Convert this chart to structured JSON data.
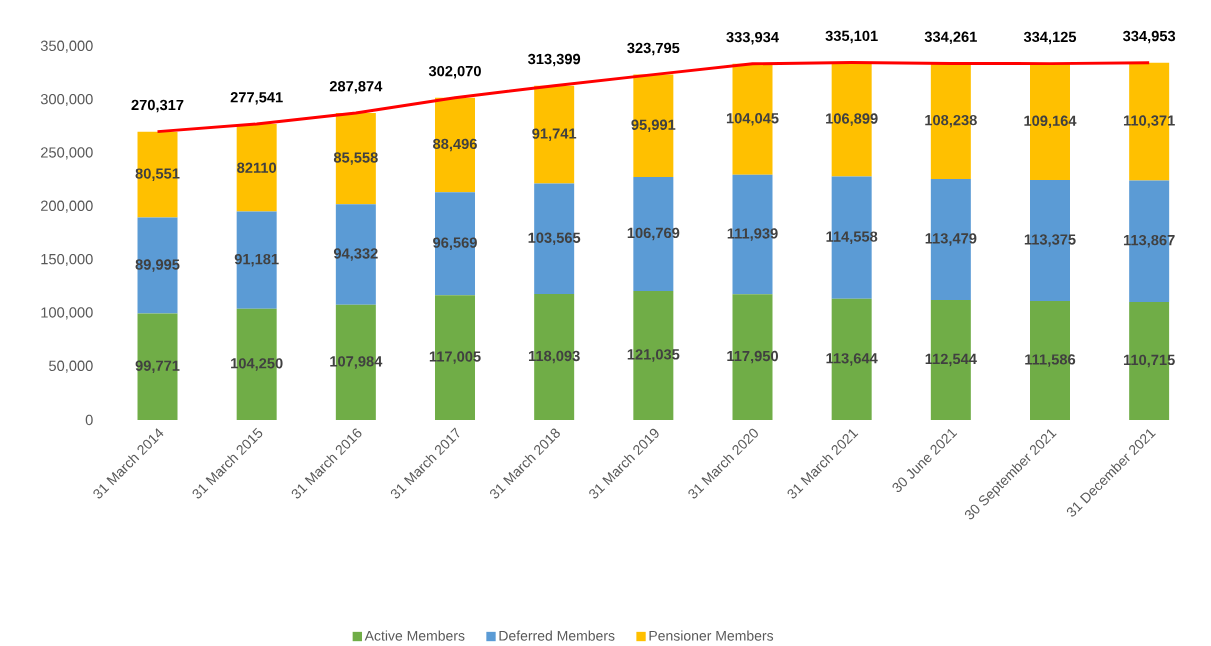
{
  "chart_data": {
    "type": "bar",
    "stacked": true,
    "categories": [
      "31 March 2014",
      "31 March 2015",
      "31 March 2016",
      "31 March 2017",
      "31 March 2018",
      "31 March 2019",
      "31 March 2020",
      "31 March 2021",
      "30 June 2021",
      "30 September 2021",
      "31 December 2021"
    ],
    "series": [
      {
        "name": "Active Members",
        "color": "#70ad47",
        "values": [
          99771,
          104250,
          107984,
          117005,
          118093,
          121035,
          117950,
          113644,
          112544,
          111586,
          110715
        ],
        "value_labels": [
          "99,771",
          "104,250",
          "107,984",
          "117,005",
          "118,093",
          "121,035",
          "117,950",
          "113,644",
          "112,544",
          "111,586",
          "110,715"
        ]
      },
      {
        "name": "Deferred Members",
        "color": "#5b9bd5",
        "values": [
          89995,
          91181,
          94332,
          96569,
          103565,
          106769,
          111939,
          114558,
          113479,
          113375,
          113867
        ],
        "value_labels": [
          "89,995",
          "91,181",
          "94,332",
          "96,569",
          "103,565",
          "106,769",
          "111,939",
          "114,558",
          "113,479",
          "113,375",
          "113,867"
        ]
      },
      {
        "name": "Pensioner Members",
        "color": "#ffc000",
        "values": [
          80551,
          82110,
          85558,
          88496,
          91741,
          95991,
          104045,
          106899,
          108238,
          109164,
          110371
        ],
        "value_labels": [
          "80,551",
          "82110",
          "85,558",
          "88,496",
          "91,741",
          "95,991",
          "104,045",
          "106,899",
          "108,238",
          "109,164",
          "110,371"
        ]
      },
      {
        "type": "line",
        "color": "#ff0000",
        "values": [
          270317,
          277541,
          287874,
          302070,
          313399,
          323795,
          333934,
          335101,
          334261,
          334125,
          334953
        ]
      }
    ],
    "totals": [
      "270,317",
      "277,541",
      "287,874",
      "302,070",
      "313,399",
      "323,795",
      "333,934",
      "335,101",
      "334,261",
      "334,125",
      "334,953"
    ],
    "ylim": [
      0,
      350000
    ],
    "yticks": [
      {
        "value": 0,
        "label": "0"
      },
      {
        "value": 50000,
        "label": "50,000"
      },
      {
        "value": 100000,
        "label": "100,000"
      },
      {
        "value": 150000,
        "label": "150,000"
      },
      {
        "value": 200000,
        "label": "200,000"
      },
      {
        "value": 250000,
        "label": "250,000"
      },
      {
        "value": 300000,
        "label": "300,000"
      },
      {
        "value": 350000,
        "label": "350,000"
      }
    ],
    "grid": false,
    "legend": "bottom"
  }
}
